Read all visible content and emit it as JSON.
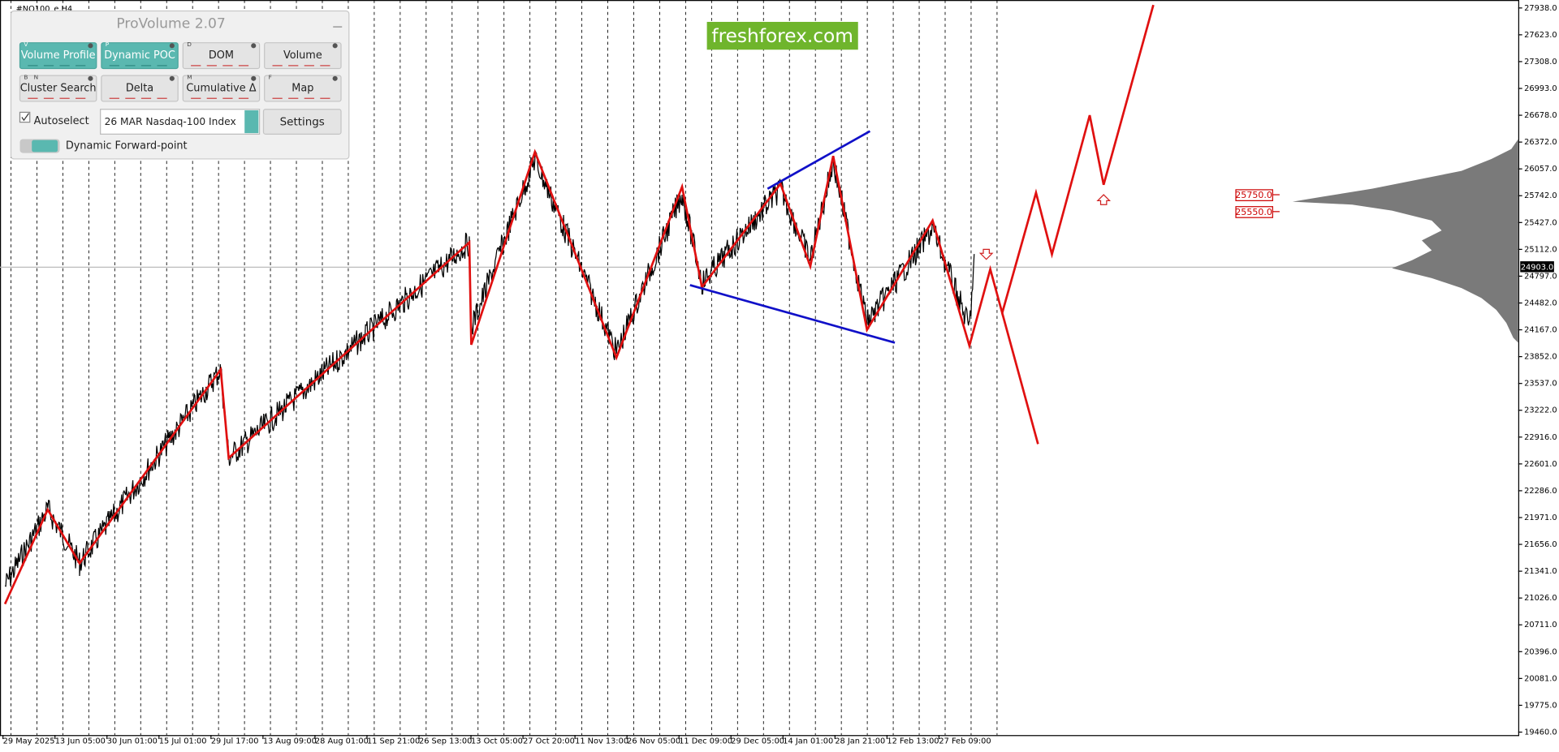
{
  "header": {
    "symbol": "#NQ100_e,H4"
  },
  "panel": {
    "title": "ProVolume 2.07",
    "buttons": [
      {
        "key": "V",
        "label": "Volume Profile",
        "active": true
      },
      {
        "key": "P",
        "label": "Dynamic POC",
        "active": true
      },
      {
        "key": "D",
        "label": "DOM",
        "active": false
      },
      {
        "label": "Volume",
        "active": false
      },
      {
        "keys": [
          "B",
          "N"
        ],
        "label": "Cluster Search",
        "active": false
      },
      {
        "label": "Delta",
        "active": false
      },
      {
        "key": "M",
        "label": "Cumulative Δ",
        "active": false
      },
      {
        "key": "F",
        "label": "Map",
        "active": false
      }
    ],
    "autoselect": "Autoselect",
    "instrument": "26 MAR Nasdaq-100 Index",
    "settings": "Settings",
    "forward": "Dynamic Forward-point"
  },
  "logo": "freshforex.com",
  "price_axis": [
    "27938.0",
    "27623.0",
    "27308.0",
    "26993.0",
    "26678.0",
    "26372.0",
    "26057.0",
    "25742.0",
    "25427.0",
    "25112.0",
    "24797.0",
    "24482.0",
    "24167.0",
    "23852.0",
    "23537.0",
    "23222.0",
    "22916.0",
    "22601.0",
    "22286.0",
    "21971.0",
    "21656.0",
    "21341.0",
    "21026.0",
    "20711.0",
    "20396.0",
    "20081.0",
    "19775.0",
    "19460.0"
  ],
  "time_axis": [
    "29 May 2025",
    "13 Jun 05:00",
    "30 Jun 01:00",
    "15 Jul 01:00",
    "29 Jul 17:00",
    "13 Aug 09:00",
    "28 Aug 01:00",
    "11 Sep 21:00",
    "26 Sep 13:00",
    "13 Oct 05:00",
    "27 Oct 20:00",
    "11 Nov 13:00",
    "26 Nov 05:00",
    "11 Dec 09:00",
    "29 Dec 05:00",
    "14 Jan 01:00",
    "28 Jan 21:00",
    "12 Feb 13:00",
    "27 Feb 09:00"
  ],
  "levels": [
    "25750.0",
    "25550.0"
  ],
  "current_price": "24903.0"
}
